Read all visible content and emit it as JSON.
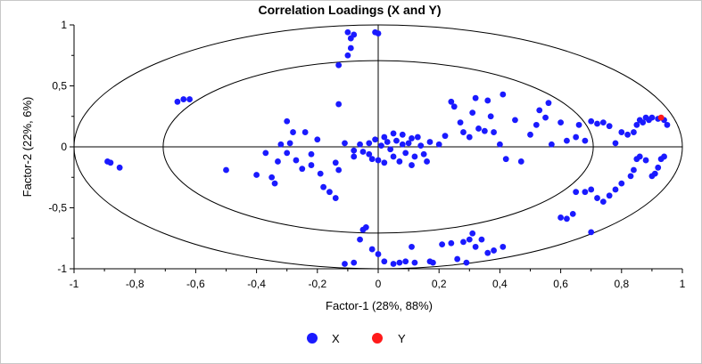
{
  "chart_data": {
    "type": "scatter",
    "title": "Correlation Loadings (X and Y)",
    "xlabel": "Factor-1 (28%, 88%)",
    "ylabel": "Factor-2 (22%, 6%)",
    "xlim": [
      -1,
      1
    ],
    "ylim": [
      -1,
      1
    ],
    "x_ticks": [
      -1,
      -0.8,
      -0.6,
      -0.4,
      -0.2,
      0,
      0.2,
      0.4,
      0.6,
      0.8,
      1
    ],
    "x_tick_labels": [
      "-1",
      "-0,8",
      "-0,6",
      "-0,4",
      "-0,2",
      "0",
      "0,2",
      "0,4",
      "0,6",
      "0,8",
      "1"
    ],
    "y_ticks": [
      1,
      0.5,
      0,
      -0.5,
      -1
    ],
    "y_tick_labels": [
      "1",
      "0,5",
      "0",
      "-0,5",
      "-1"
    ],
    "ellipses": [
      1.0,
      0.7071
    ],
    "legend": {
      "position": "bottom-center"
    },
    "series": [
      {
        "name": "X",
        "color": "#1a1aff",
        "points": [
          [
            -0.1,
            0.94
          ],
          [
            -0.08,
            0.92
          ],
          [
            -0.09,
            0.89
          ],
          [
            -0.01,
            0.94
          ],
          [
            0.0,
            0.93
          ],
          [
            -0.09,
            0.81
          ],
          [
            -0.1,
            0.75
          ],
          [
            -0.13,
            0.67
          ],
          [
            -0.13,
            0.35
          ],
          [
            -0.66,
            0.37
          ],
          [
            -0.64,
            0.39
          ],
          [
            -0.62,
            0.39
          ],
          [
            -0.89,
            -0.12
          ],
          [
            -0.88,
            -0.13
          ],
          [
            -0.85,
            -0.17
          ],
          [
            -0.5,
            -0.19
          ],
          [
            -0.4,
            -0.23
          ],
          [
            -0.35,
            -0.25
          ],
          [
            -0.34,
            -0.3
          ],
          [
            -0.32,
            0.02
          ],
          [
            -0.3,
            0.21
          ],
          [
            -0.28,
            0.12
          ],
          [
            -0.29,
            0.03
          ],
          [
            -0.3,
            -0.05
          ],
          [
            -0.27,
            -0.11
          ],
          [
            -0.25,
            -0.18
          ],
          [
            -0.33,
            -0.12
          ],
          [
            -0.37,
            -0.05
          ],
          [
            -0.22,
            -0.06
          ],
          [
            -0.2,
            0.06
          ],
          [
            -0.22,
            -0.15
          ],
          [
            -0.24,
            0.12
          ],
          [
            -0.19,
            -0.22
          ],
          [
            -0.18,
            -0.33
          ],
          [
            -0.16,
            -0.37
          ],
          [
            -0.14,
            -0.42
          ],
          [
            -0.13,
            -0.19
          ],
          [
            -0.14,
            -0.13
          ],
          [
            -0.11,
            0.03
          ],
          [
            -0.08,
            -0.03
          ],
          [
            -0.05,
            -0.04
          ],
          [
            -0.03,
            -0.06
          ],
          [
            -0.02,
            -0.1
          ],
          [
            0.0,
            -0.11
          ],
          [
            -0.03,
            0.03
          ],
          [
            -0.01,
            0.06
          ],
          [
            0.01,
            0.01
          ],
          [
            0.02,
            0.08
          ],
          [
            0.03,
            0.04
          ],
          [
            0.04,
            -0.02
          ],
          [
            0.05,
            -0.08
          ],
          [
            0.06,
            0.05
          ],
          [
            0.07,
            -0.12
          ],
          [
            0.08,
            0.02
          ],
          [
            0.09,
            -0.05
          ],
          [
            0.1,
            0.03
          ],
          [
            0.12,
            -0.08
          ],
          [
            0.11,
            -0.15
          ],
          [
            0.14,
            0.01
          ],
          [
            0.15,
            -0.06
          ],
          [
            0.16,
            -0.12
          ],
          [
            0.13,
            0.08
          ],
          [
            0.17,
            0.04
          ],
          [
            0.05,
            0.11
          ],
          [
            0.08,
            0.1
          ],
          [
            0.11,
            0.07
          ],
          [
            -0.06,
            0.02
          ],
          [
            -0.08,
            -0.08
          ],
          [
            0.02,
            -0.13
          ],
          [
            0.2,
            0.02
          ],
          [
            0.22,
            0.09
          ],
          [
            0.24,
            0.37
          ],
          [
            0.25,
            0.33
          ],
          [
            0.27,
            0.2
          ],
          [
            0.28,
            0.12
          ],
          [
            0.3,
            0.08
          ],
          [
            0.31,
            0.28
          ],
          [
            0.32,
            0.4
          ],
          [
            0.33,
            0.15
          ],
          [
            0.35,
            0.13
          ],
          [
            0.36,
            0.38
          ],
          [
            0.37,
            0.25
          ],
          [
            0.38,
            0.12
          ],
          [
            0.4,
            0.02
          ],
          [
            0.41,
            0.43
          ],
          [
            0.42,
            -0.1
          ],
          [
            0.45,
            0.22
          ],
          [
            0.47,
            -0.12
          ],
          [
            0.5,
            0.1
          ],
          [
            0.52,
            0.18
          ],
          [
            0.53,
            0.3
          ],
          [
            0.55,
            0.24
          ],
          [
            0.56,
            0.36
          ],
          [
            0.57,
            0.02
          ],
          [
            0.6,
            0.2
          ],
          [
            0.62,
            0.05
          ],
          [
            0.65,
            0.08
          ],
          [
            0.68,
            0.05
          ],
          [
            0.66,
            0.18
          ],
          [
            0.7,
            0.21
          ],
          [
            0.72,
            0.19
          ],
          [
            0.74,
            0.2
          ],
          [
            0.76,
            0.17
          ],
          [
            0.78,
            0.03
          ],
          [
            0.8,
            0.12
          ],
          [
            0.82,
            0.1
          ],
          [
            0.84,
            0.12
          ],
          [
            0.85,
            0.18
          ],
          [
            0.86,
            0.22
          ],
          [
            0.87,
            0.2
          ],
          [
            0.88,
            0.24
          ],
          [
            0.89,
            0.22
          ],
          [
            0.9,
            0.24
          ],
          [
            0.92,
            0.23
          ],
          [
            0.94,
            0.22
          ],
          [
            0.95,
            0.18
          ],
          [
            0.93,
            -0.1
          ],
          [
            0.94,
            -0.08
          ],
          [
            0.92,
            -0.17
          ],
          [
            0.91,
            -0.22
          ],
          [
            0.9,
            -0.24
          ],
          [
            0.85,
            -0.1
          ],
          [
            0.84,
            -0.19
          ],
          [
            0.83,
            -0.24
          ],
          [
            0.86,
            -0.08
          ],
          [
            0.88,
            -0.11
          ],
          [
            0.8,
            -0.3
          ],
          [
            0.78,
            -0.35
          ],
          [
            0.76,
            -0.4
          ],
          [
            0.74,
            -0.45
          ],
          [
            0.72,
            -0.42
          ],
          [
            0.7,
            -0.35
          ],
          [
            0.68,
            -0.37
          ],
          [
            0.65,
            -0.37
          ],
          [
            0.64,
            -0.55
          ],
          [
            0.62,
            -0.59
          ],
          [
            0.6,
            -0.58
          ],
          [
            0.7,
            -0.7
          ],
          [
            -0.04,
            -0.66
          ],
          [
            -0.05,
            -0.68
          ],
          [
            -0.06,
            -0.76
          ],
          [
            -0.02,
            -0.84
          ],
          [
            0.0,
            -0.88
          ],
          [
            -0.11,
            -0.96
          ],
          [
            -0.08,
            -0.95
          ],
          [
            0.02,
            -0.94
          ],
          [
            0.05,
            -0.96
          ],
          [
            0.07,
            -0.95
          ],
          [
            0.09,
            -0.94
          ],
          [
            0.12,
            -0.95
          ],
          [
            0.11,
            -0.82
          ],
          [
            0.17,
            -0.94
          ],
          [
            0.18,
            -0.95
          ],
          [
            0.21,
            -0.8
          ],
          [
            0.24,
            -0.79
          ],
          [
            0.26,
            -0.92
          ],
          [
            0.29,
            -0.95
          ],
          [
            0.3,
            -0.76
          ],
          [
            0.31,
            -0.71
          ],
          [
            0.32,
            -0.82
          ],
          [
            0.34,
            -0.76
          ],
          [
            0.36,
            -0.87
          ],
          [
            0.38,
            -0.85
          ],
          [
            0.41,
            -0.82
          ],
          [
            0.28,
            -0.78
          ]
        ]
      },
      {
        "name": "Y",
        "color": "#ff1a1a",
        "points": [
          [
            0.93,
            0.24
          ]
        ]
      }
    ]
  }
}
